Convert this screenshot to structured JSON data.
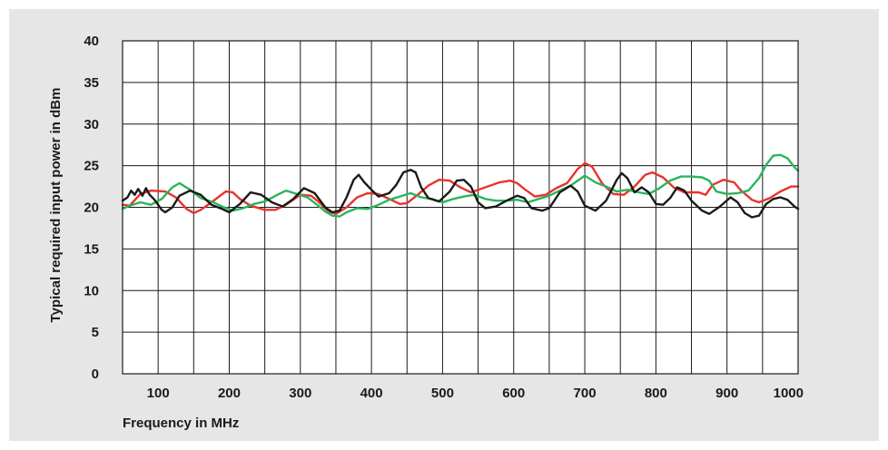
{
  "chart_data": {
    "type": "line",
    "title": "",
    "xlabel": "Frequency in MHz",
    "ylabel": "Typical required input power in dBm",
    "xlim": [
      50,
      1000
    ],
    "ylim": [
      0,
      40
    ],
    "x_ticks": [
      100,
      200,
      300,
      400,
      500,
      600,
      700,
      800,
      900,
      1000
    ],
    "y_ticks": [
      0,
      5,
      10,
      15,
      20,
      25,
      30,
      35,
      40
    ],
    "x_tick_labels": [
      "100",
      "200",
      "300",
      "400",
      "500",
      "600",
      "700",
      "800",
      "900",
      "1000"
    ],
    "y_tick_labels": [
      "0",
      "5",
      "10",
      "15",
      "20",
      "25",
      "30",
      "35",
      "40"
    ],
    "grid": true,
    "colors": {
      "red": "#e8332d",
      "green": "#2cb35c",
      "black": "#1a1a1a"
    },
    "series": [
      {
        "color": "red",
        "points": [
          [
            50,
            20.3
          ],
          [
            60,
            20.2
          ],
          [
            75,
            21.6
          ],
          [
            90,
            22.0
          ],
          [
            110,
            21.9
          ],
          [
            125,
            21.2
          ],
          [
            140,
            19.8
          ],
          [
            150,
            19.3
          ],
          [
            160,
            19.7
          ],
          [
            175,
            20.6
          ],
          [
            195,
            21.9
          ],
          [
            205,
            21.8
          ],
          [
            215,
            21.0
          ],
          [
            230,
            20.2
          ],
          [
            250,
            19.7
          ],
          [
            265,
            19.7
          ],
          [
            280,
            20.3
          ],
          [
            300,
            21.5
          ],
          [
            315,
            21.4
          ],
          [
            325,
            20.7
          ],
          [
            340,
            19.5
          ],
          [
            350,
            19.2
          ],
          [
            365,
            20.0
          ],
          [
            380,
            21.2
          ],
          [
            395,
            21.7
          ],
          [
            410,
            21.6
          ],
          [
            420,
            21.2
          ],
          [
            440,
            20.4
          ],
          [
            450,
            20.5
          ],
          [
            465,
            21.5
          ],
          [
            480,
            22.6
          ],
          [
            495,
            23.3
          ],
          [
            510,
            23.2
          ],
          [
            525,
            22.4
          ],
          [
            540,
            21.8
          ],
          [
            560,
            22.4
          ],
          [
            580,
            23.0
          ],
          [
            595,
            23.2
          ],
          [
            605,
            22.9
          ],
          [
            615,
            22.2
          ],
          [
            630,
            21.3
          ],
          [
            645,
            21.5
          ],
          [
            660,
            22.3
          ],
          [
            675,
            22.9
          ],
          [
            690,
            24.6
          ],
          [
            700,
            25.3
          ],
          [
            710,
            24.9
          ],
          [
            725,
            22.8
          ],
          [
            740,
            21.6
          ],
          [
            755,
            21.5
          ],
          [
            770,
            22.5
          ],
          [
            785,
            23.9
          ],
          [
            795,
            24.2
          ],
          [
            810,
            23.6
          ],
          [
            825,
            22.4
          ],
          [
            840,
            21.8
          ],
          [
            860,
            21.8
          ],
          [
            870,
            21.5
          ],
          [
            880,
            22.7
          ],
          [
            895,
            23.3
          ],
          [
            910,
            23.0
          ],
          [
            920,
            22.0
          ],
          [
            935,
            20.9
          ],
          [
            945,
            20.6
          ],
          [
            960,
            21.1
          ],
          [
            975,
            21.9
          ],
          [
            990,
            22.5
          ],
          [
            1000,
            22.5
          ]
        ]
      },
      {
        "color": "green",
        "points": [
          [
            50,
            19.8
          ],
          [
            60,
            20.2
          ],
          [
            75,
            20.6
          ],
          [
            90,
            20.3
          ],
          [
            105,
            21.0
          ],
          [
            120,
            22.4
          ],
          [
            130,
            22.9
          ],
          [
            145,
            22.1
          ],
          [
            160,
            21.1
          ],
          [
            175,
            20.7
          ],
          [
            190,
            20.1
          ],
          [
            205,
            19.6
          ],
          [
            220,
            19.9
          ],
          [
            235,
            20.4
          ],
          [
            250,
            20.7
          ],
          [
            270,
            21.6
          ],
          [
            280,
            22.0
          ],
          [
            295,
            21.6
          ],
          [
            310,
            21.2
          ],
          [
            325,
            20.2
          ],
          [
            335,
            19.5
          ],
          [
            345,
            19.0
          ],
          [
            355,
            18.9
          ],
          [
            365,
            19.4
          ],
          [
            380,
            19.9
          ],
          [
            395,
            19.8
          ],
          [
            410,
            20.3
          ],
          [
            425,
            20.9
          ],
          [
            440,
            21.3
          ],
          [
            455,
            21.7
          ],
          [
            470,
            21.2
          ],
          [
            485,
            21.0
          ],
          [
            500,
            20.6
          ],
          [
            515,
            21.0
          ],
          [
            530,
            21.3
          ],
          [
            545,
            21.5
          ],
          [
            560,
            21.0
          ],
          [
            575,
            20.8
          ],
          [
            590,
            20.8
          ],
          [
            605,
            20.9
          ],
          [
            620,
            20.6
          ],
          [
            635,
            21.0
          ],
          [
            650,
            21.4
          ],
          [
            665,
            22.0
          ],
          [
            680,
            22.6
          ],
          [
            700,
            23.8
          ],
          [
            715,
            23.0
          ],
          [
            730,
            22.5
          ],
          [
            745,
            21.9
          ],
          [
            760,
            22.1
          ],
          [
            775,
            21.8
          ],
          [
            790,
            21.6
          ],
          [
            805,
            22.3
          ],
          [
            820,
            23.2
          ],
          [
            835,
            23.7
          ],
          [
            850,
            23.7
          ],
          [
            865,
            23.6
          ],
          [
            875,
            23.2
          ],
          [
            885,
            21.9
          ],
          [
            900,
            21.6
          ],
          [
            915,
            21.7
          ],
          [
            930,
            22.0
          ],
          [
            945,
            23.5
          ],
          [
            955,
            25.1
          ],
          [
            965,
            26.2
          ],
          [
            975,
            26.3
          ],
          [
            985,
            25.9
          ],
          [
            995,
            24.8
          ],
          [
            1000,
            24.4
          ]
        ]
      },
      {
        "color": "black",
        "points": [
          [
            50,
            20.8
          ],
          [
            57,
            21.2
          ],
          [
            62,
            22.0
          ],
          [
            67,
            21.5
          ],
          [
            72,
            22.2
          ],
          [
            78,
            21.4
          ],
          [
            83,
            22.3
          ],
          [
            88,
            21.5
          ],
          [
            95,
            20.9
          ],
          [
            105,
            19.7
          ],
          [
            110,
            19.4
          ],
          [
            120,
            20.0
          ],
          [
            130,
            21.4
          ],
          [
            145,
            22.0
          ],
          [
            160,
            21.5
          ],
          [
            175,
            20.3
          ],
          [
            190,
            19.8
          ],
          [
            200,
            19.4
          ],
          [
            215,
            20.4
          ],
          [
            230,
            21.8
          ],
          [
            245,
            21.5
          ],
          [
            260,
            20.6
          ],
          [
            275,
            20.1
          ],
          [
            290,
            21.0
          ],
          [
            305,
            22.3
          ],
          [
            320,
            21.7
          ],
          [
            335,
            20.0
          ],
          [
            345,
            19.4
          ],
          [
            355,
            19.6
          ],
          [
            365,
            21.2
          ],
          [
            375,
            23.3
          ],
          [
            382,
            23.9
          ],
          [
            390,
            23.0
          ],
          [
            400,
            22.1
          ],
          [
            410,
            21.3
          ],
          [
            425,
            21.7
          ],
          [
            435,
            22.7
          ],
          [
            445,
            24.2
          ],
          [
            455,
            24.5
          ],
          [
            462,
            24.2
          ],
          [
            470,
            22.4
          ],
          [
            480,
            21.1
          ],
          [
            495,
            20.7
          ],
          [
            510,
            21.9
          ],
          [
            520,
            23.2
          ],
          [
            530,
            23.3
          ],
          [
            540,
            22.5
          ],
          [
            550,
            20.6
          ],
          [
            560,
            19.9
          ],
          [
            575,
            20.1
          ],
          [
            590,
            20.8
          ],
          [
            605,
            21.4
          ],
          [
            615,
            21.1
          ],
          [
            625,
            19.9
          ],
          [
            640,
            19.6
          ],
          [
            650,
            19.9
          ],
          [
            665,
            21.8
          ],
          [
            680,
            22.6
          ],
          [
            690,
            21.9
          ],
          [
            700,
            20.2
          ],
          [
            715,
            19.6
          ],
          [
            730,
            20.8
          ],
          [
            745,
            23.3
          ],
          [
            752,
            24.1
          ],
          [
            760,
            23.5
          ],
          [
            770,
            21.8
          ],
          [
            780,
            22.4
          ],
          [
            790,
            21.8
          ],
          [
            800,
            20.4
          ],
          [
            810,
            20.3
          ],
          [
            820,
            21.1
          ],
          [
            830,
            22.4
          ],
          [
            840,
            22.0
          ],
          [
            850,
            20.8
          ],
          [
            865,
            19.6
          ],
          [
            875,
            19.2
          ],
          [
            890,
            20.1
          ],
          [
            905,
            21.2
          ],
          [
            915,
            20.6
          ],
          [
            925,
            19.3
          ],
          [
            935,
            18.8
          ],
          [
            945,
            19.0
          ],
          [
            955,
            20.4
          ],
          [
            965,
            21.0
          ],
          [
            975,
            21.2
          ],
          [
            985,
            20.9
          ],
          [
            995,
            20.1
          ],
          [
            1000,
            19.8
          ]
        ]
      }
    ]
  }
}
